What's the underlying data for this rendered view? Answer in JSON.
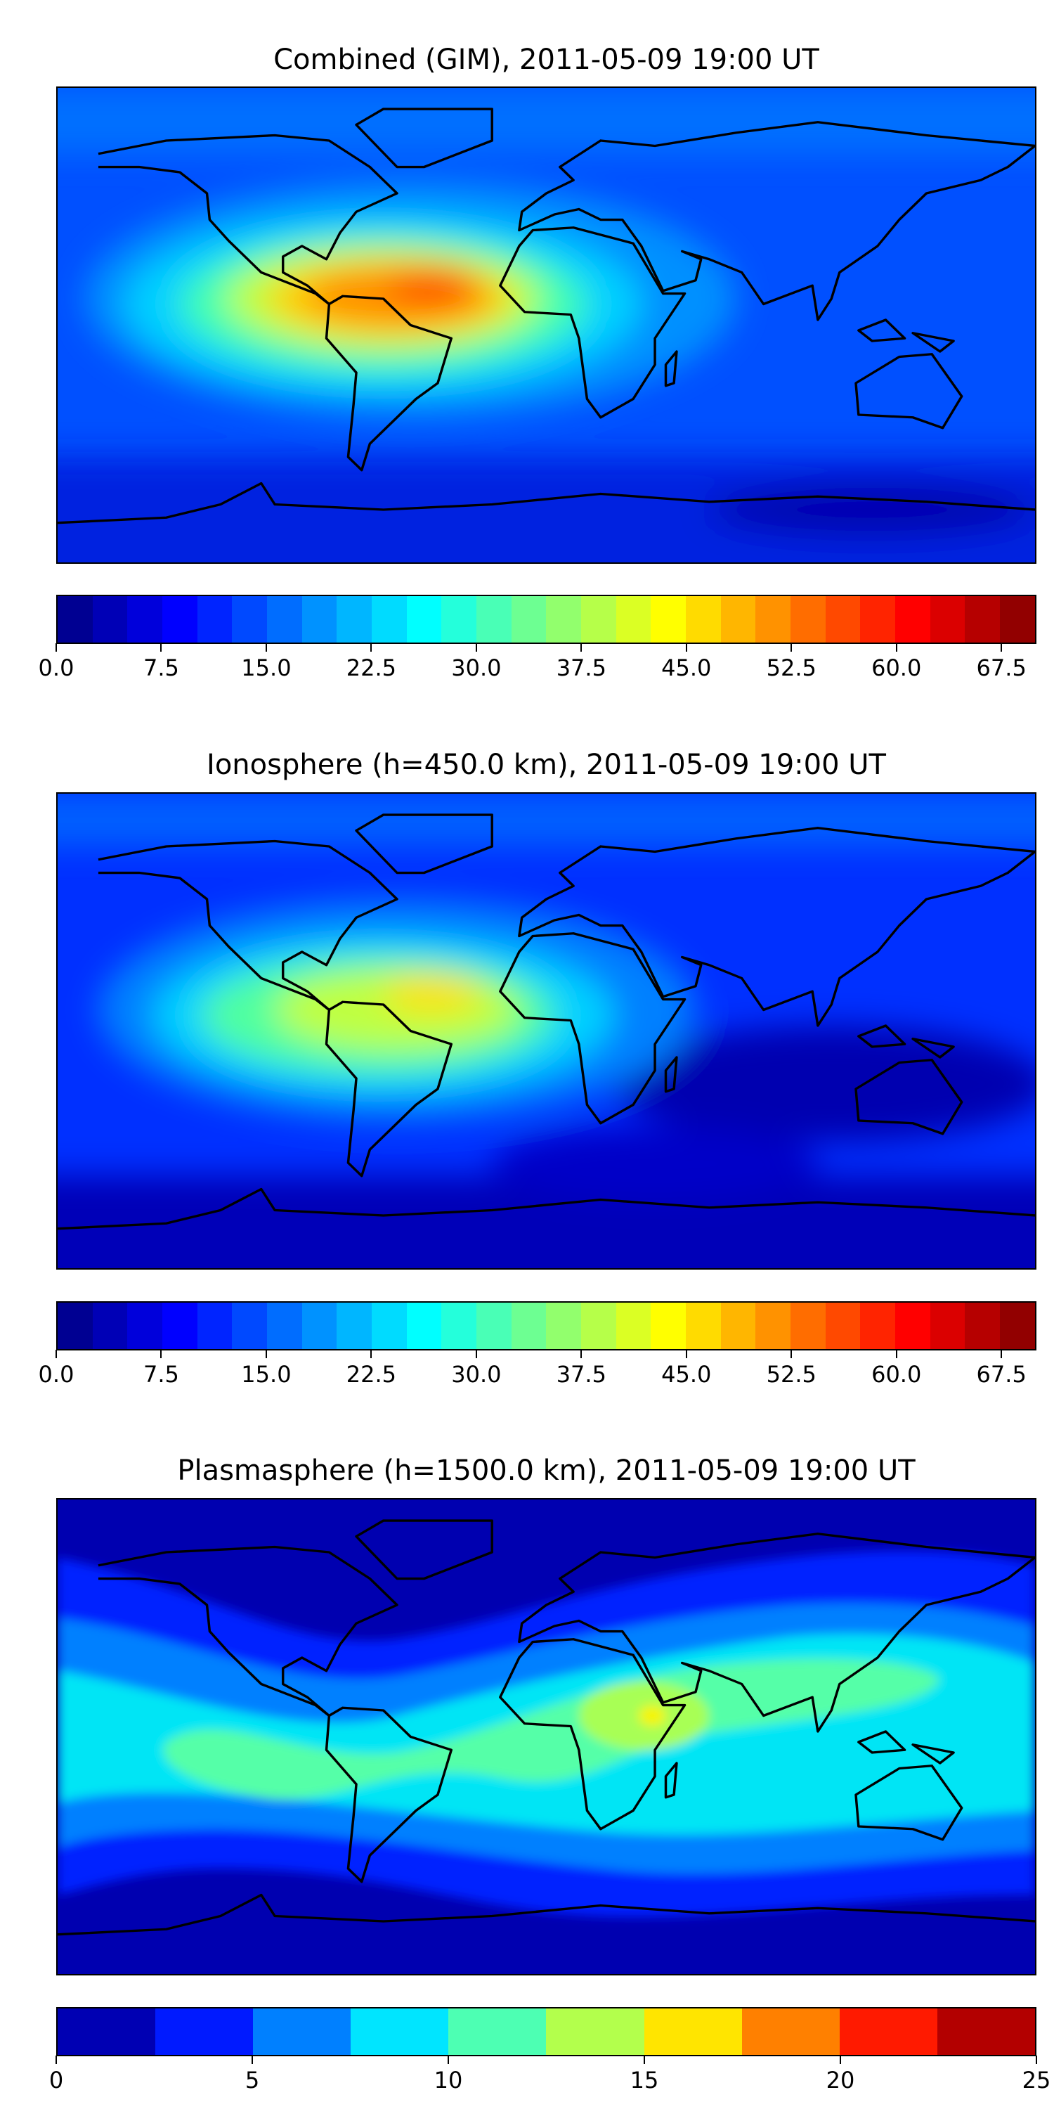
{
  "chart_data": [
    {
      "type": "heatmap",
      "title": "Combined (GIM), 2011-05-09 19:00 UT",
      "colormap": "jet",
      "levels": {
        "min": 0,
        "max": 70,
        "step": 2.5
      },
      "colorbar_ticks": [
        "0.0",
        "7.5",
        "15.0",
        "22.5",
        "30.0",
        "37.5",
        "45.0",
        "52.5",
        "60.0",
        "67.5"
      ],
      "colorbar_tick_values": [
        0,
        7.5,
        15,
        22.5,
        30,
        37.5,
        45,
        52.5,
        60,
        67.5
      ],
      "peak_value_approx": 60,
      "peak_region": "northern South America / Caribbean"
    },
    {
      "type": "heatmap",
      "title": "Ionosphere  (h=450.0 km), 2011-05-09 19:00 UT",
      "colormap": "jet",
      "levels": {
        "min": 0,
        "max": 70,
        "step": 2.5
      },
      "colorbar_ticks": [
        "0.0",
        "7.5",
        "15.0",
        "22.5",
        "30.0",
        "37.5",
        "45.0",
        "52.5",
        "60.0",
        "67.5"
      ],
      "colorbar_tick_values": [
        0,
        7.5,
        15,
        22.5,
        30,
        37.5,
        45,
        52.5,
        60,
        67.5
      ],
      "peak_value_approx": 47,
      "peak_region": "Caribbean / northern South America"
    },
    {
      "type": "heatmap",
      "title": "Plasmasphere (h=1500.0 km), 2011-05-09 19:00 UT",
      "colormap": "jet",
      "levels": {
        "min": 0,
        "max": 25,
        "step": 2.5
      },
      "colorbar_ticks": [
        "0",
        "5",
        "10",
        "15",
        "20",
        "25"
      ],
      "colorbar_tick_values": [
        0,
        5,
        10,
        15,
        20,
        25
      ],
      "peak_value_approx": 16,
      "peak_region": "central Africa"
    }
  ]
}
